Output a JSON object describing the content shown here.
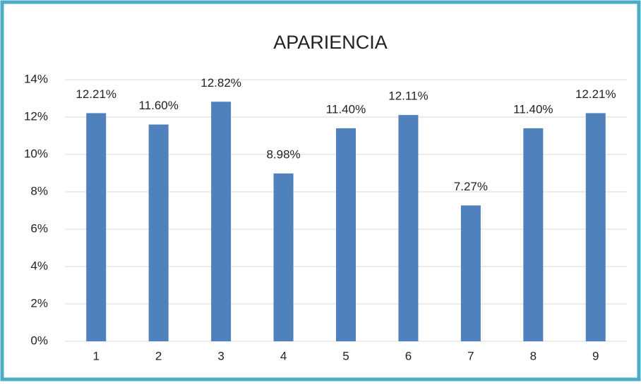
{
  "chart_data": {
    "type": "bar",
    "title": "APARIENCIA",
    "categories": [
      "1",
      "2",
      "3",
      "4",
      "5",
      "6",
      "7",
      "8",
      "9"
    ],
    "values": [
      12.21,
      11.6,
      12.82,
      8.98,
      11.4,
      12.11,
      7.27,
      11.4,
      12.21
    ],
    "value_labels": [
      "12.21%",
      "11.60%",
      "12.82%",
      "8.98%",
      "11.40%",
      "12.11%",
      "7.27%",
      "11.40%",
      "12.21%"
    ],
    "color": "#4f81bd",
    "ylim": [
      0,
      14
    ],
    "yticks": [
      {
        "value": 0,
        "label": "0%"
      },
      {
        "value": 2,
        "label": "2%"
      },
      {
        "value": 4,
        "label": "4%"
      },
      {
        "value": 6,
        "label": "6%"
      },
      {
        "value": 8,
        "label": "8%"
      },
      {
        "value": 10,
        "label": "10%"
      },
      {
        "value": 12,
        "label": "12%"
      },
      {
        "value": 14,
        "label": "14%"
      }
    ],
    "grid": true
  }
}
